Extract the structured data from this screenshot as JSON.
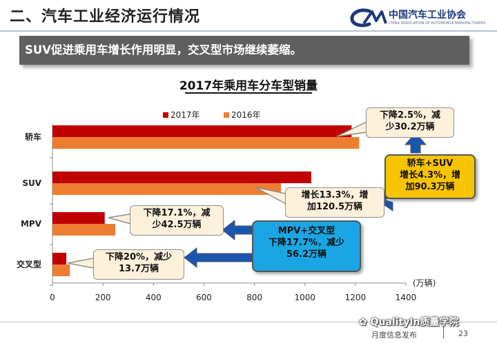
{
  "header": {
    "title": "二、汽车工业经济运行情况",
    "logo_cn": "中国汽车工业协会",
    "logo_en": "CHINA ASSOCIATION OF AUTOMOBILE MANUFACTURERS"
  },
  "banner": {
    "text": "SUV促进乘用车增长作用明显，交叉型市场继续萎缩。"
  },
  "chart_data": {
    "type": "bar",
    "orientation": "horizontal",
    "title": "2017年乘用车分车型销量",
    "categories": [
      "轿车",
      "SUV",
      "MPV",
      "交叉型"
    ],
    "series": [
      {
        "name": "2017年",
        "color": "#c00000",
        "values": [
          1185,
          1025,
          207,
          55
        ]
      },
      {
        "name": "2016年",
        "color": "#ed7d31",
        "values": [
          1215,
          905,
          249,
          69
        ]
      }
    ],
    "xlim": [
      0,
      1400
    ],
    "xticks": [
      0,
      200,
      400,
      600,
      800,
      1000,
      1200,
      1400
    ],
    "xlabel": "(万辆)",
    "legend_position": "top"
  },
  "callouts": {
    "sedan": [
      "下降2.5%，减",
      "少30.2万辆"
    ],
    "suv": [
      "增长13.3%，增",
      "加120.5万辆"
    ],
    "mpv": [
      "下降17.1%，减",
      "少42.5万辆"
    ],
    "crossover": [
      "下降20%，减少",
      "13.7万辆"
    ],
    "sedan_suv": [
      "轿车+SUV",
      "增长4.3%，增",
      "加90.3万辆"
    ],
    "mpv_crossover": [
      "MPV+交叉型",
      "下降17.7%，减少",
      "56.2万辆"
    ]
  },
  "colors": {
    "arrow_blue": "#1a56b0",
    "yellow": "#f7c400",
    "blue": "#1aa6e4"
  },
  "footer": {
    "watermark": "QualityIn质量学院",
    "text": "月度信息发布",
    "page": "23"
  }
}
